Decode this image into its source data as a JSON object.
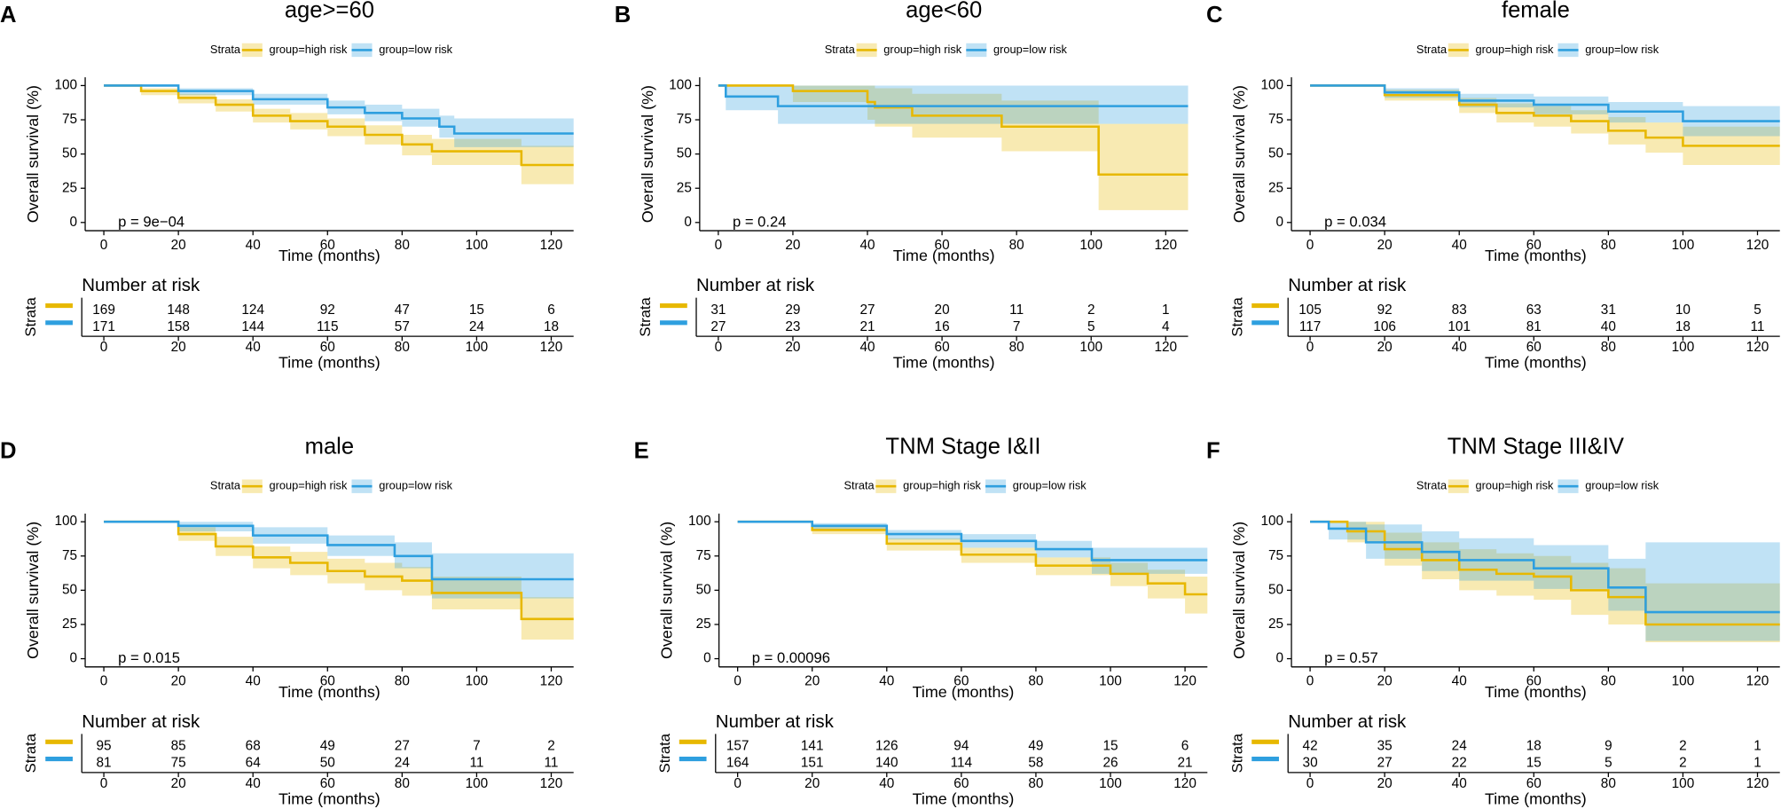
{
  "chart_data": [
    {
      "type": "line",
      "step": true,
      "panel_label": "A",
      "title": "age>=60",
      "legend_title": "Strata",
      "xlabel": "Time (months)",
      "ylabel": "Overall survival (%)",
      "annotation": "p = 9e−04",
      "xlim": [
        -5,
        126
      ],
      "ylim": [
        -6,
        106
      ],
      "xticks": [
        0,
        20,
        40,
        60,
        80,
        100,
        120
      ],
      "yticks": [
        0,
        25,
        50,
        75,
        100
      ],
      "series": [
        {
          "name": "group=high risk",
          "color": "#E7B800",
          "x": [
            0,
            10,
            20,
            30,
            40,
            50,
            60,
            70,
            80,
            88,
            112,
            126
          ],
          "values": [
            100,
            96,
            91,
            86,
            78,
            74,
            70,
            64,
            57,
            52,
            42,
            42
          ],
          "lower": [
            100,
            93,
            87,
            81,
            73,
            68,
            63,
            57,
            49,
            42,
            28,
            28
          ],
          "upper": [
            100,
            98,
            94,
            90,
            83,
            80,
            76,
            71,
            64,
            61,
            56,
            56
          ],
          "at_risk": [
            169,
            148,
            124,
            92,
            47,
            15,
            6
          ]
        },
        {
          "name": "group=low risk",
          "color": "#2E9FDF",
          "x": [
            0,
            20,
            40,
            60,
            70,
            80,
            90,
            94,
            126
          ],
          "values": [
            100,
            96,
            90,
            84,
            80,
            76,
            70,
            65,
            65
          ],
          "lower": [
            100,
            93,
            86,
            79,
            74,
            70,
            62,
            55,
            55
          ],
          "upper": [
            100,
            98,
            94,
            89,
            86,
            83,
            78,
            76,
            76
          ],
          "at_risk": [
            171,
            158,
            144,
            115,
            57,
            24,
            18
          ]
        }
      ],
      "risk_table": {
        "title": "Number at risk",
        "ylabel": "Strata",
        "xlabel": "Time (months)"
      }
    },
    {
      "type": "line",
      "step": true,
      "panel_label": "B",
      "title": "age<60",
      "legend_title": "Strata",
      "xlabel": "Time (months)",
      "ylabel": "Overall survival (%)",
      "annotation": "p = 0.24",
      "xlim": [
        -5,
        126
      ],
      "ylim": [
        -6,
        106
      ],
      "xticks": [
        0,
        20,
        40,
        60,
        80,
        100,
        120
      ],
      "yticks": [
        0,
        25,
        50,
        75,
        100
      ],
      "series": [
        {
          "name": "group=high risk",
          "color": "#E7B800",
          "x": [
            0,
            20,
            40,
            42,
            52,
            76,
            102,
            126
          ],
          "values": [
            100,
            96,
            88,
            84,
            78,
            70,
            35,
            35
          ],
          "lower": [
            100,
            88,
            75,
            70,
            62,
            52,
            9,
            9
          ],
          "upper": [
            100,
            100,
            100,
            98,
            94,
            89,
            72,
            72
          ],
          "at_risk": [
            31,
            29,
            27,
            20,
            11,
            2,
            1
          ]
        },
        {
          "name": "group=low risk",
          "color": "#2E9FDF",
          "x": [
            0,
            2,
            16,
            126
          ],
          "values": [
            100,
            92,
            85,
            85
          ],
          "lower": [
            100,
            82,
            72,
            72
          ],
          "upper": [
            100,
            100,
            100,
            100
          ],
          "at_risk": [
            27,
            23,
            21,
            16,
            7,
            5,
            4
          ]
        }
      ],
      "risk_table": {
        "title": "Number at risk",
        "ylabel": "Strata",
        "xlabel": "Time (months)"
      }
    },
    {
      "type": "line",
      "step": true,
      "panel_label": "C",
      "title": "female",
      "legend_title": "Strata",
      "xlabel": "Time (months)",
      "ylabel": "Overall survival (%)",
      "annotation": "p = 0.034",
      "xlim": [
        -5,
        126
      ],
      "ylim": [
        -6,
        106
      ],
      "xticks": [
        0,
        20,
        40,
        60,
        80,
        100,
        120
      ],
      "yticks": [
        0,
        25,
        50,
        75,
        100
      ],
      "series": [
        {
          "name": "group=high risk",
          "color": "#E7B800",
          "x": [
            0,
            20,
            40,
            50,
            60,
            70,
            80,
            90,
            100,
            126
          ],
          "values": [
            100,
            93,
            86,
            80,
            78,
            74,
            67,
            62,
            56,
            56
          ],
          "lower": [
            100,
            89,
            80,
            73,
            70,
            65,
            57,
            51,
            42,
            42
          ],
          "upper": [
            100,
            97,
            91,
            87,
            85,
            82,
            77,
            73,
            70,
            70
          ],
          "at_risk": [
            105,
            92,
            83,
            63,
            31,
            10,
            5
          ]
        },
        {
          "name": "group=low risk",
          "color": "#2E9FDF",
          "x": [
            0,
            20,
            40,
            60,
            80,
            100,
            126
          ],
          "values": [
            100,
            95,
            89,
            86,
            81,
            74,
            74
          ],
          "lower": [
            100,
            91,
            84,
            79,
            73,
            63,
            63
          ],
          "upper": [
            100,
            98,
            94,
            92,
            88,
            85,
            85
          ],
          "at_risk": [
            117,
            106,
            101,
            81,
            40,
            18,
            11
          ]
        }
      ],
      "risk_table": {
        "title": "Number at risk",
        "ylabel": "Strata",
        "xlabel": "Time (months)"
      }
    },
    {
      "type": "line",
      "step": true,
      "panel_label": "D",
      "title": "male",
      "legend_title": "Strata",
      "xlabel": "Time (months)",
      "ylabel": "Overall survival (%)",
      "annotation": "p = 0.015",
      "xlim": [
        -5,
        126
      ],
      "ylim": [
        -6,
        106
      ],
      "xticks": [
        0,
        20,
        40,
        60,
        80,
        100,
        120
      ],
      "yticks": [
        0,
        25,
        50,
        75,
        100
      ],
      "series": [
        {
          "name": "group=high risk",
          "color": "#E7B800",
          "x": [
            0,
            20,
            30,
            40,
            50,
            60,
            70,
            80,
            88,
            112,
            126
          ],
          "values": [
            100,
            91,
            82,
            74,
            70,
            64,
            60,
            57,
            48,
            29,
            29
          ],
          "lower": [
            100,
            86,
            75,
            66,
            61,
            55,
            50,
            46,
            36,
            14,
            14
          ],
          "upper": [
            100,
            96,
            89,
            82,
            78,
            73,
            70,
            67,
            60,
            45,
            45
          ],
          "at_risk": [
            95,
            85,
            68,
            49,
            27,
            7,
            2
          ]
        },
        {
          "name": "group=low risk",
          "color": "#2E9FDF",
          "x": [
            0,
            20,
            40,
            60,
            78,
            88,
            126
          ],
          "values": [
            100,
            97,
            90,
            83,
            75,
            58,
            58
          ],
          "lower": [
            100,
            93,
            84,
            75,
            66,
            44,
            44
          ],
          "upper": [
            100,
            100,
            96,
            90,
            85,
            77,
            77
          ],
          "at_risk": [
            81,
            75,
            64,
            50,
            24,
            11,
            11
          ]
        }
      ],
      "risk_table": {
        "title": "Number at risk",
        "ylabel": "Strata",
        "xlabel": "Time (months)"
      }
    },
    {
      "type": "line",
      "step": true,
      "panel_label": "E",
      "title": "TNM Stage I&II",
      "legend_title": "Strata",
      "xlabel": "Time (months)",
      "ylabel": "Overall survival (%)",
      "annotation": "p = 0.00096",
      "xlim": [
        -5,
        126
      ],
      "ylim": [
        -6,
        106
      ],
      "xticks": [
        0,
        20,
        40,
        60,
        80,
        100,
        120
      ],
      "yticks": [
        0,
        25,
        50,
        75,
        100
      ],
      "series": [
        {
          "name": "group=high risk",
          "color": "#E7B800",
          "x": [
            0,
            20,
            40,
            60,
            80,
            100,
            110,
            120,
            126
          ],
          "values": [
            100,
            94,
            84,
            76,
            68,
            62,
            55,
            47,
            47
          ],
          "lower": [
            100,
            91,
            79,
            70,
            61,
            53,
            44,
            33,
            33
          ],
          "upper": [
            100,
            97,
            88,
            81,
            74,
            70,
            65,
            60,
            60
          ],
          "at_risk": [
            157,
            141,
            126,
            94,
            49,
            15,
            6
          ]
        },
        {
          "name": "group=low risk",
          "color": "#2E9FDF",
          "x": [
            0,
            20,
            40,
            60,
            80,
            95,
            126
          ],
          "values": [
            100,
            97,
            91,
            86,
            80,
            72,
            72
          ],
          "lower": [
            100,
            94,
            87,
            81,
            74,
            62,
            62
          ],
          "upper": [
            100,
            99,
            94,
            91,
            86,
            81,
            81
          ],
          "at_risk": [
            164,
            151,
            140,
            114,
            58,
            26,
            21
          ]
        }
      ],
      "risk_table": {
        "title": "Number at risk",
        "ylabel": "Strata",
        "xlabel": "Time (months)"
      }
    },
    {
      "type": "line",
      "step": true,
      "panel_label": "F",
      "title": "TNM Stage III&IV",
      "legend_title": "Strata",
      "xlabel": "Time (months)",
      "ylabel": "Overall survival (%)",
      "annotation": "p = 0.57",
      "xlim": [
        -5,
        126
      ],
      "ylim": [
        -6,
        106
      ],
      "xticks": [
        0,
        20,
        40,
        60,
        80,
        100,
        120
      ],
      "yticks": [
        0,
        25,
        50,
        75,
        100
      ],
      "series": [
        {
          "name": "group=high risk",
          "color": "#E7B800",
          "x": [
            0,
            10,
            20,
            30,
            40,
            50,
            60,
            70,
            80,
            90,
            126
          ],
          "values": [
            100,
            93,
            80,
            72,
            65,
            62,
            60,
            50,
            45,
            25,
            25
          ],
          "lower": [
            100,
            85,
            68,
            58,
            50,
            46,
            43,
            32,
            25,
            12,
            12
          ],
          "upper": [
            100,
            100,
            92,
            85,
            80,
            77,
            75,
            70,
            66,
            55,
            55
          ],
          "at_risk": [
            42,
            35,
            24,
            18,
            9,
            2,
            1
          ]
        },
        {
          "name": "group=low risk",
          "color": "#2E9FDF",
          "x": [
            0,
            5,
            15,
            30,
            40,
            60,
            80,
            90,
            126
          ],
          "values": [
            100,
            95,
            85,
            78,
            72,
            66,
            52,
            34,
            34
          ],
          "lower": [
            100,
            87,
            73,
            64,
            57,
            51,
            35,
            13,
            13
          ],
          "upper": [
            100,
            100,
            98,
            93,
            88,
            83,
            73,
            85,
            85
          ],
          "at_risk": [
            30,
            27,
            22,
            15,
            5,
            2,
            1
          ]
        }
      ],
      "risk_table": {
        "title": "Number at risk",
        "ylabel": "Strata",
        "xlabel": "Time (months)"
      }
    }
  ]
}
